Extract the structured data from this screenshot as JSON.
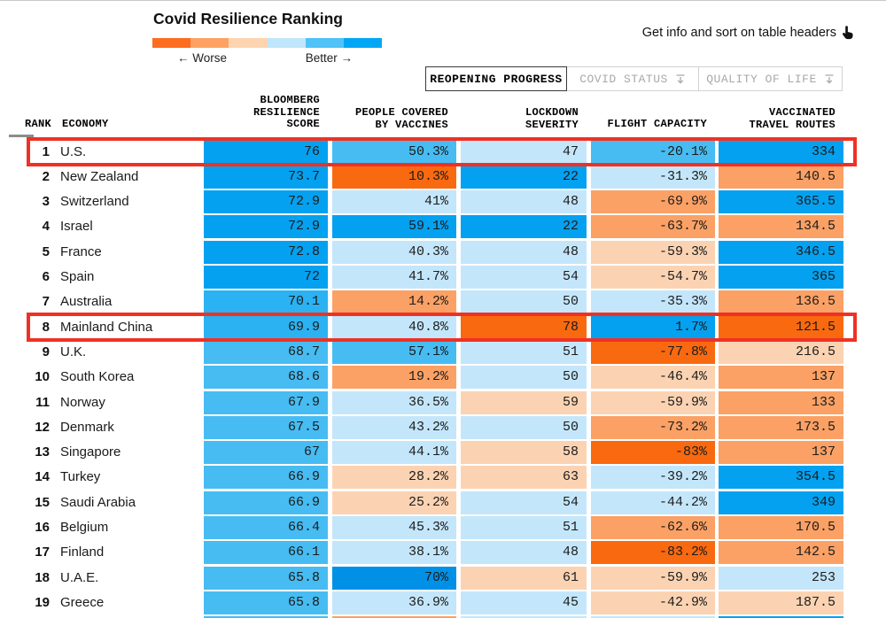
{
  "header": {
    "title": "Covid Resilience Ranking",
    "legend_worse": "← Worse",
    "legend_better": "Better →",
    "legend_colors": [
      "#FC6D1F",
      "#FDA263",
      "#FDD4B0",
      "#C0E6FB",
      "#4FC2F7",
      "#01A7F4"
    ],
    "info_text": "Get info and sort on table headers"
  },
  "tabs": [
    {
      "label": "REOPENING PROGRESS",
      "active": true
    },
    {
      "label": "COVID STATUS",
      "active": false
    },
    {
      "label": "QUALITY OF LIFE",
      "active": false
    }
  ],
  "palette": {
    "do": "#F9690F",
    "mo": "#FBA165",
    "lo": "#FCD3B2",
    "lb": "#C4E6FB",
    "mb": "#47BCF2",
    "sb": "#2BB2F2",
    "db": "#04A1F0",
    "xb": "#0091E6",
    "highlight_red": "#EF3124"
  },
  "chart_data": {
    "type": "heatmap",
    "title": "Covid Resilience Ranking",
    "legend": {
      "left_label": "← Worse",
      "right_label": "Better →"
    },
    "columns": [
      "RANK",
      "ECONOMY",
      "BLOOMBERG RESILIENCE SCORE",
      "PEOPLE COVERED BY VACCINES",
      "LOCKDOWN SEVERITY",
      "FLIGHT CAPACITY",
      "VACCINATED TRAVEL ROUTES"
    ],
    "column_headers": {
      "rank": "RANK",
      "economy": "ECONOMY",
      "score_lines": [
        "BLOOMBERG",
        "RESILIENCE",
        "SCORE"
      ],
      "vaccines_lines": [
        "PEOPLE COVERED",
        "BY VACCINES"
      ],
      "lockdown_lines": [
        "LOCKDOWN",
        "SEVERITY"
      ],
      "flight_lines": [
        "FLIGHT CAPACITY"
      ],
      "routes_lines": [
        "VACCINATED",
        "TRAVEL ROUTES"
      ]
    },
    "rows": [
      {
        "rank": "1",
        "economy": "U.S.",
        "highlight": true,
        "cells": [
          [
            "76",
            "db"
          ],
          [
            "50.3%",
            "mb"
          ],
          [
            "47",
            "lb"
          ],
          [
            "-20.1%",
            "mb"
          ],
          [
            "334",
            "db"
          ]
        ]
      },
      {
        "rank": "2",
        "economy": "New Zealand",
        "highlight": false,
        "cells": [
          [
            "73.7",
            "db"
          ],
          [
            "10.3%",
            "do"
          ],
          [
            "22",
            "db"
          ],
          [
            "-31.3%",
            "lb"
          ],
          [
            "140.5",
            "mo"
          ]
        ]
      },
      {
        "rank": "3",
        "economy": "Switzerland",
        "highlight": false,
        "cells": [
          [
            "72.9",
            "db"
          ],
          [
            "41%",
            "lb"
          ],
          [
            "48",
            "lb"
          ],
          [
            "-69.9%",
            "mo"
          ],
          [
            "365.5",
            "db"
          ]
        ]
      },
      {
        "rank": "4",
        "economy": "Israel",
        "highlight": false,
        "cells": [
          [
            "72.9",
            "db"
          ],
          [
            "59.1%",
            "db"
          ],
          [
            "22",
            "db"
          ],
          [
            "-63.7%",
            "mo"
          ],
          [
            "134.5",
            "mo"
          ]
        ]
      },
      {
        "rank": "5",
        "economy": "France",
        "highlight": false,
        "cells": [
          [
            "72.8",
            "db"
          ],
          [
            "40.3%",
            "lb"
          ],
          [
            "48",
            "lb"
          ],
          [
            "-59.3%",
            "lo"
          ],
          [
            "346.5",
            "db"
          ]
        ]
      },
      {
        "rank": "6",
        "economy": "Spain",
        "highlight": false,
        "cells": [
          [
            "72",
            "db"
          ],
          [
            "41.7%",
            "lb"
          ],
          [
            "54",
            "lb"
          ],
          [
            "-54.7%",
            "lo"
          ],
          [
            "365",
            "db"
          ]
        ]
      },
      {
        "rank": "7",
        "economy": "Australia",
        "highlight": false,
        "cells": [
          [
            "70.1",
            "sb"
          ],
          [
            "14.2%",
            "mo"
          ],
          [
            "50",
            "lb"
          ],
          [
            "-35.3%",
            "lb"
          ],
          [
            "136.5",
            "mo"
          ]
        ]
      },
      {
        "rank": "8",
        "economy": "Mainland China",
        "highlight": true,
        "cells": [
          [
            "69.9",
            "sb"
          ],
          [
            "40.8%",
            "lb"
          ],
          [
            "78",
            "do"
          ],
          [
            "1.7%",
            "db"
          ],
          [
            "121.5",
            "do"
          ]
        ]
      },
      {
        "rank": "9",
        "economy": "U.K.",
        "highlight": false,
        "cells": [
          [
            "68.7",
            "mb"
          ],
          [
            "57.1%",
            "mb"
          ],
          [
            "51",
            "lb"
          ],
          [
            "-77.8%",
            "do"
          ],
          [
            "216.5",
            "lo"
          ]
        ]
      },
      {
        "rank": "10",
        "economy": "South Korea",
        "highlight": false,
        "cells": [
          [
            "68.6",
            "mb"
          ],
          [
            "19.2%",
            "mo"
          ],
          [
            "50",
            "lb"
          ],
          [
            "-46.4%",
            "lo"
          ],
          [
            "137",
            "mo"
          ]
        ]
      },
      {
        "rank": "11",
        "economy": "Norway",
        "highlight": false,
        "cells": [
          [
            "67.9",
            "mb"
          ],
          [
            "36.5%",
            "lb"
          ],
          [
            "59",
            "lo"
          ],
          [
            "-59.9%",
            "lo"
          ],
          [
            "133",
            "mo"
          ]
        ]
      },
      {
        "rank": "12",
        "economy": "Denmark",
        "highlight": false,
        "cells": [
          [
            "67.5",
            "mb"
          ],
          [
            "43.2%",
            "lb"
          ],
          [
            "50",
            "lb"
          ],
          [
            "-73.2%",
            "mo"
          ],
          [
            "173.5",
            "mo"
          ]
        ]
      },
      {
        "rank": "13",
        "economy": "Singapore",
        "highlight": false,
        "cells": [
          [
            "67",
            "mb"
          ],
          [
            "44.1%",
            "lb"
          ],
          [
            "58",
            "lo"
          ],
          [
            "-83%",
            "do"
          ],
          [
            "137",
            "mo"
          ]
        ]
      },
      {
        "rank": "14",
        "economy": "Turkey",
        "highlight": false,
        "cells": [
          [
            "66.9",
            "mb"
          ],
          [
            "28.2%",
            "lo"
          ],
          [
            "63",
            "lo"
          ],
          [
            "-39.2%",
            "lb"
          ],
          [
            "354.5",
            "db"
          ]
        ]
      },
      {
        "rank": "15",
        "economy": "Saudi Arabia",
        "highlight": false,
        "cells": [
          [
            "66.9",
            "mb"
          ],
          [
            "25.2%",
            "lo"
          ],
          [
            "54",
            "lb"
          ],
          [
            "-44.2%",
            "lb"
          ],
          [
            "349",
            "db"
          ]
        ]
      },
      {
        "rank": "16",
        "economy": "Belgium",
        "highlight": false,
        "cells": [
          [
            "66.4",
            "mb"
          ],
          [
            "45.3%",
            "lb"
          ],
          [
            "51",
            "lb"
          ],
          [
            "-62.6%",
            "mo"
          ],
          [
            "170.5",
            "mo"
          ]
        ]
      },
      {
        "rank": "17",
        "economy": "Finland",
        "highlight": false,
        "cells": [
          [
            "66.1",
            "mb"
          ],
          [
            "38.1%",
            "lb"
          ],
          [
            "48",
            "lb"
          ],
          [
            "-83.2%",
            "do"
          ],
          [
            "142.5",
            "mo"
          ]
        ]
      },
      {
        "rank": "18",
        "economy": "U.A.E.",
        "highlight": false,
        "cells": [
          [
            "65.8",
            "mb"
          ],
          [
            "70%",
            "xb"
          ],
          [
            "61",
            "lo"
          ],
          [
            "-59.9%",
            "lo"
          ],
          [
            "253",
            "lb"
          ]
        ]
      },
      {
        "rank": "19",
        "economy": "Greece",
        "highlight": false,
        "cells": [
          [
            "65.8",
            "mb"
          ],
          [
            "36.9%",
            "lb"
          ],
          [
            "45",
            "lb"
          ],
          [
            "-42.9%",
            "lo"
          ],
          [
            "187.5",
            "lo"
          ]
        ]
      },
      {
        "rank": "",
        "economy": "",
        "highlight": false,
        "cells": [
          [
            "",
            "mb"
          ],
          [
            "",
            "mo"
          ],
          [
            "",
            "lb"
          ],
          [
            "",
            "lb"
          ],
          [
            "",
            "db"
          ]
        ]
      }
    ]
  }
}
